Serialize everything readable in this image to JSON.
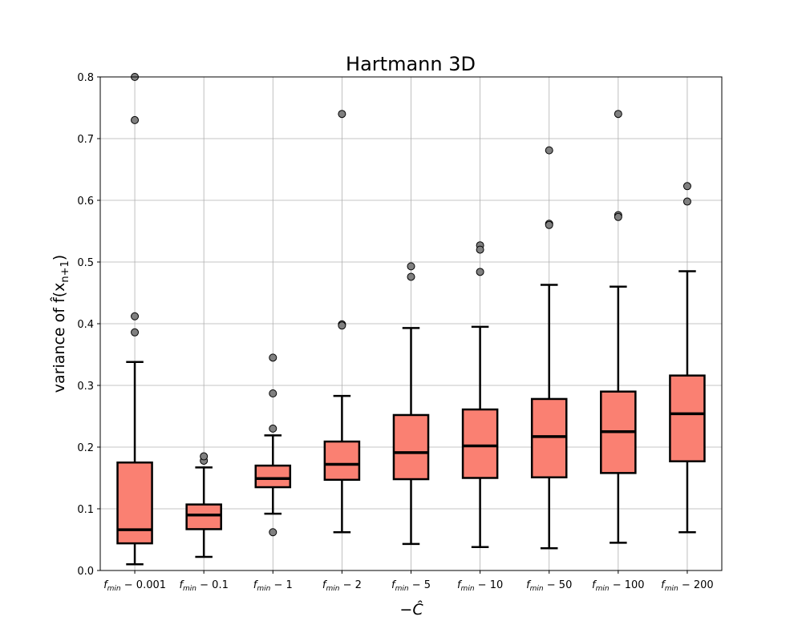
{
  "chart_data": {
    "type": "box",
    "title": "Hartmann 3D",
    "xlabel": "−Ĉ",
    "ylabel": "variance of f̂(x",
    "ylabel_sub": "n+1",
    "ylabel_suffix": ")",
    "ylim": [
      0,
      0.8
    ],
    "yticks": [
      0.0,
      0.1,
      0.2,
      0.3,
      0.4,
      0.5,
      0.6,
      0.7,
      0.8
    ],
    "ytick_labels": [
      "0.0",
      "0.1",
      "0.2",
      "0.3",
      "0.4",
      "0.5",
      "0.6",
      "0.7",
      "0.8"
    ],
    "grid": true,
    "colors": {
      "box_fill": "#fa8072",
      "box_edge": "#000000",
      "flier": "#808080",
      "grid": "#b0b0b0"
    },
    "categories": [
      {
        "base": "f",
        "sub": "min",
        "suffix": " − 0.001"
      },
      {
        "base": "f",
        "sub": "min",
        "suffix": " − 0.1"
      },
      {
        "base": "f",
        "sub": "min",
        "suffix": " − 1"
      },
      {
        "base": "f",
        "sub": "min",
        "suffix": " − 2"
      },
      {
        "base": "f",
        "sub": "min",
        "suffix": " − 5"
      },
      {
        "base": "f",
        "sub": "min",
        "suffix": " − 10"
      },
      {
        "base": "f",
        "sub": "min",
        "suffix": " − 50"
      },
      {
        "base": "f",
        "sub": "min",
        "suffix": " − 100"
      },
      {
        "base": "f",
        "sub": "min",
        "suffix": " − 200"
      }
    ],
    "boxes": [
      {
        "whislo": 0.01,
        "q1": 0.044,
        "med": 0.066,
        "q3": 0.175,
        "whishi": 0.338,
        "fliers": [
          0.8,
          0.73,
          0.412,
          0.386
        ]
      },
      {
        "whislo": 0.022,
        "q1": 0.067,
        "med": 0.09,
        "q3": 0.107,
        "whishi": 0.167,
        "fliers": [
          0.178,
          0.185
        ]
      },
      {
        "whislo": 0.092,
        "q1": 0.135,
        "med": 0.149,
        "q3": 0.17,
        "whishi": 0.219,
        "fliers": [
          0.345,
          0.287,
          0.23,
          0.062
        ]
      },
      {
        "whislo": 0.062,
        "q1": 0.147,
        "med": 0.172,
        "q3": 0.209,
        "whishi": 0.283,
        "fliers": [
          0.74,
          0.399,
          0.397
        ]
      },
      {
        "whislo": 0.043,
        "q1": 0.148,
        "med": 0.191,
        "q3": 0.252,
        "whishi": 0.393,
        "fliers": [
          0.493,
          0.476
        ]
      },
      {
        "whislo": 0.038,
        "q1": 0.15,
        "med": 0.202,
        "q3": 0.261,
        "whishi": 0.395,
        "fliers": [
          0.527,
          0.52,
          0.484
        ]
      },
      {
        "whislo": 0.036,
        "q1": 0.151,
        "med": 0.217,
        "q3": 0.278,
        "whishi": 0.463,
        "fliers": [
          0.681,
          0.562,
          0.56
        ]
      },
      {
        "whislo": 0.045,
        "q1": 0.158,
        "med": 0.225,
        "q3": 0.29,
        "whishi": 0.46,
        "fliers": [
          0.74,
          0.576,
          0.573
        ]
      },
      {
        "whislo": 0.062,
        "q1": 0.177,
        "med": 0.254,
        "q3": 0.316,
        "whishi": 0.485,
        "fliers": [
          0.623,
          0.598
        ]
      }
    ]
  }
}
